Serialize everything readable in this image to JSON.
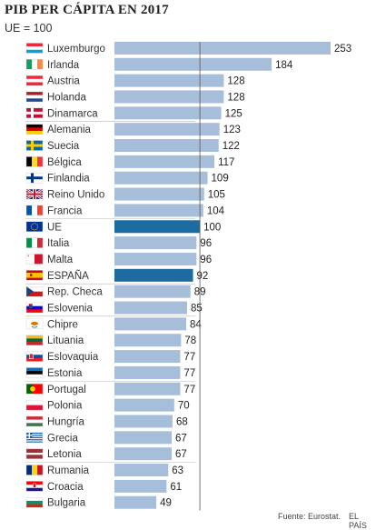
{
  "title": "PIB PER CÁPITA EN 2017",
  "subtitle": "UE = 100",
  "source": "Fuente: Eurostat.",
  "publisher": "EL PAÍS",
  "colors": {
    "bar": "#a7bedb",
    "highlight": "#1c6ca1",
    "reference_line": "#555555",
    "separator": "#bbbbbb"
  },
  "chart_data": {
    "type": "bar",
    "orientation": "horizontal",
    "title": "PIB PER CÁPITA EN 2017",
    "subtitle": "UE = 100",
    "reference_value": 100,
    "xlim": [
      0,
      253
    ],
    "categories": [
      "Luxemburgo",
      "Irlanda",
      "Austria",
      "Holanda",
      "Dinamarca",
      "Alemania",
      "Suecia",
      "Bélgica",
      "Finlandia",
      "Reino Unido",
      "Francia",
      "UE",
      "Italia",
      "Malta",
      "ESPAÑA",
      "Rep. Checa",
      "Eslovenia",
      "Chipre",
      "Lituania",
      "Eslovaquia",
      "Estonia",
      "Portugal",
      "Polonia",
      "Hungría",
      "Grecia",
      "Letonia",
      "Rumania",
      "Croacia",
      "Bulgaria"
    ],
    "values": [
      253,
      184,
      128,
      128,
      125,
      123,
      122,
      117,
      109,
      105,
      104,
      100,
      96,
      96,
      92,
      89,
      85,
      84,
      78,
      77,
      77,
      77,
      70,
      68,
      67,
      67,
      63,
      61,
      49
    ],
    "highlighted": [
      "UE",
      "ESPAÑA"
    ],
    "flags": [
      "luxembourg-flag",
      "ireland-flag",
      "austria-flag",
      "netherlands-flag",
      "denmark-flag",
      "germany-flag",
      "sweden-flag",
      "belgium-flag",
      "finland-flag",
      "uk-flag",
      "france-flag",
      "eu-flag",
      "italy-flag",
      "malta-flag",
      "spain-flag",
      "czech-flag",
      "slovenia-flag",
      "cyprus-flag",
      "lithuania-flag",
      "slovakia-flag",
      "estonia-flag",
      "portugal-flag",
      "poland-flag",
      "hungary-flag",
      "greece-flag",
      "latvia-flag",
      "romania-flag",
      "croatia-flag",
      "bulgaria-flag"
    ]
  }
}
